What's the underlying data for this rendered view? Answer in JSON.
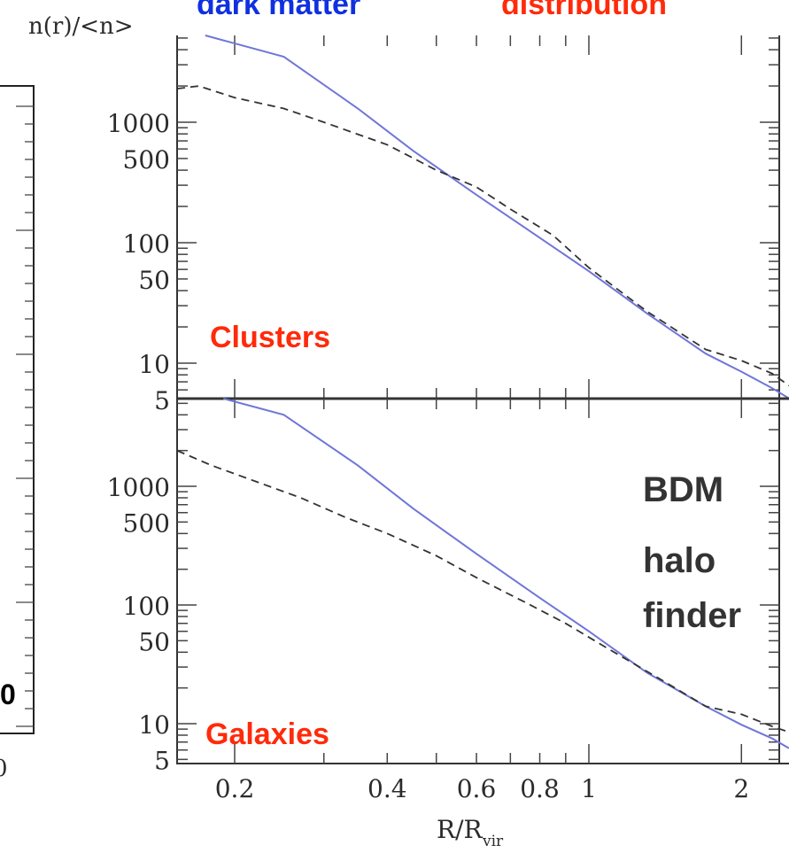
{
  "banner": {
    "part_blue": "dark matter",
    "part_red": "distribution"
  },
  "left_panel": {
    "stub_value": "0",
    "stub_axis_label": "0"
  },
  "chart_data": [
    {
      "type": "line",
      "panel_label": "Clusters",
      "ylabel": "n(r)/<n>",
      "xlabel": "",
      "xscale": "log",
      "yscale": "log",
      "xlim": [
        0.15,
        2.6
      ],
      "ylim": [
        5,
        10000
      ],
      "yticks": [
        "1000",
        "500",
        "100",
        "50",
        "10",
        "5"
      ],
      "series": [
        {
          "style": "solid",
          "color": "#6f76d8",
          "x": [
            0.175,
            0.25,
            0.35,
            0.45,
            0.6,
            0.8,
            1.0,
            1.3,
            1.7,
            2.0,
            2.3,
            2.6
          ],
          "y": [
            9000,
            3500,
            1300,
            580,
            250,
            110,
            58,
            26,
            12,
            8.5,
            6.2,
            5.1
          ]
        },
        {
          "style": "dashed",
          "color": "#333333",
          "x": [
            0.15,
            0.17,
            0.2,
            0.25,
            0.3,
            0.4,
            0.5,
            0.6,
            0.7,
            0.85,
            1.0,
            1.3,
            1.7,
            2.0,
            2.3,
            2.6
          ],
          "y": [
            1900,
            2000,
            1600,
            1300,
            1000,
            650,
            400,
            290,
            190,
            115,
            62,
            27,
            13,
            10.5,
            8.2,
            6.5
          ]
        }
      ]
    },
    {
      "type": "line",
      "panel_label": "Galaxies",
      "annotation": [
        "BDM",
        "halo",
        "finder"
      ],
      "ylabel": "",
      "xlabel": "R/R_vir",
      "xscale": "log",
      "yscale": "log",
      "xlim": [
        0.15,
        2.6
      ],
      "ylim": [
        5,
        10000
      ],
      "xticks": [
        "0.2",
        "0.4",
        "0.6",
        "0.8",
        "1",
        "2"
      ],
      "yticks": [
        "1000",
        "500",
        "100",
        "50",
        "10",
        "5"
      ],
      "series": [
        {
          "style": "solid",
          "color": "#6f76d8",
          "x": [
            0.19,
            0.25,
            0.35,
            0.45,
            0.6,
            0.8,
            1.0,
            1.3,
            1.7,
            2.0,
            2.3,
            2.6
          ],
          "y": [
            9500,
            4000,
            1500,
            650,
            270,
            115,
            60,
            27,
            14,
            9.8,
            7.5,
            6.2
          ]
        },
        {
          "style": "dashed",
          "color": "#333333",
          "x": [
            0.15,
            0.18,
            0.22,
            0.27,
            0.33,
            0.4,
            0.5,
            0.6,
            0.75,
            0.9,
            1.1,
            1.4,
            1.7,
            2.0,
            2.3,
            2.5
          ],
          "y": [
            2000,
            1500,
            1100,
            800,
            550,
            400,
            260,
            170,
            105,
            70,
            42,
            23,
            14,
            12,
            9.5,
            8.5
          ]
        }
      ]
    }
  ]
}
